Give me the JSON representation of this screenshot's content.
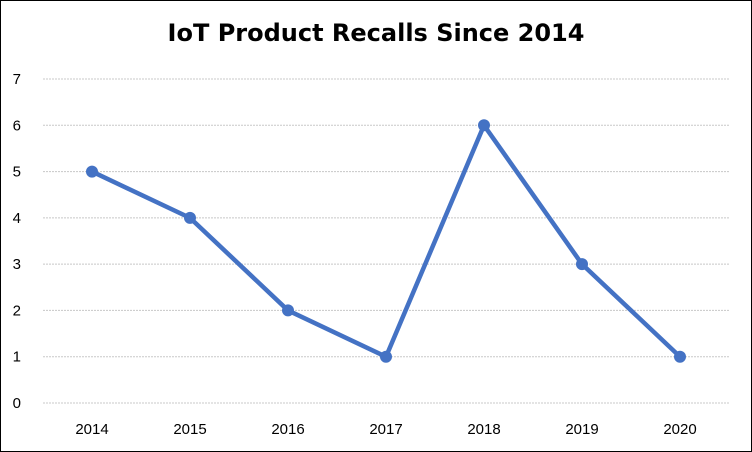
{
  "chart_data": {
    "type": "line",
    "title": "IoT Product Recalls Since 2014",
    "xlabel": "",
    "ylabel": "",
    "categories": [
      "2014",
      "2015",
      "2016",
      "2017",
      "2018",
      "2019",
      "2020"
    ],
    "series": [
      {
        "values": [
          5,
          4,
          2,
          1,
          6,
          3,
          1
        ],
        "color": "#4472C4"
      }
    ],
    "ylim": [
      0,
      7
    ],
    "yticks": [
      "0",
      "1",
      "2",
      "3",
      "4",
      "5",
      "6",
      "7"
    ],
    "grid": true,
    "legend": "none",
    "gridline_color": "#C8C8C8",
    "markers": "circle"
  }
}
